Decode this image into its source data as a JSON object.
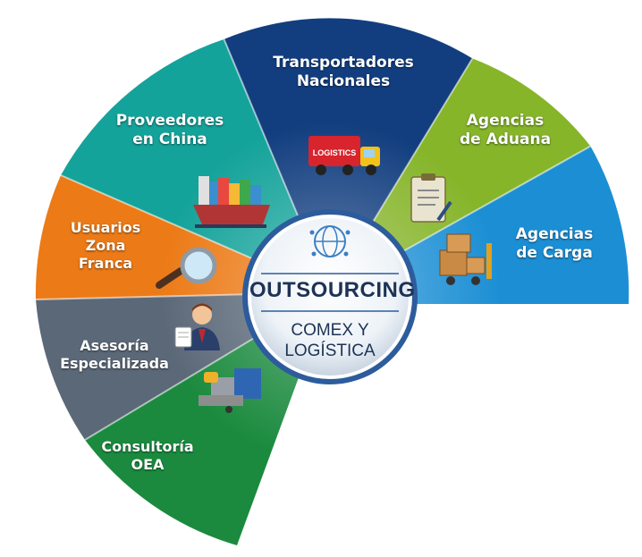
{
  "center": {
    "title": "OUTSOURCING",
    "subtitle_line1": "COMEX Y",
    "subtitle_line2": "LOGÍSTICA"
  },
  "segments": [
    {
      "line1": "Transportadores",
      "line2": "Nacionales",
      "color": "#123e7f",
      "icon": "logistics-truck-icon",
      "icon_text": "LOGISTICS"
    },
    {
      "line1": "Agencias",
      "line2": "de Aduana",
      "color": "#86b52a",
      "icon": "clipboard-document-icon"
    },
    {
      "line1": "Agencias",
      "line2": "de Carga",
      "color": "#1c8fd4",
      "icon": "forklift-boxes-icon"
    },
    {
      "line1": "Proveedores",
      "line2": "en China",
      "color": "#14a39a",
      "icon": "container-ship-icon"
    },
    {
      "line1": "Usuarios",
      "line2": "Zona",
      "line3": "Franca",
      "color": "#ec7a16",
      "icon": "magnifying-glass-icon"
    },
    {
      "line1": "Asesoría",
      "line2": "Especializada",
      "color": "#5b6878",
      "icon": "advisor-person-icon"
    },
    {
      "line1": "Consultoría",
      "line2": "OEA",
      "color": "#1b8a3e",
      "icon": "cargo-containers-icon"
    }
  ]
}
